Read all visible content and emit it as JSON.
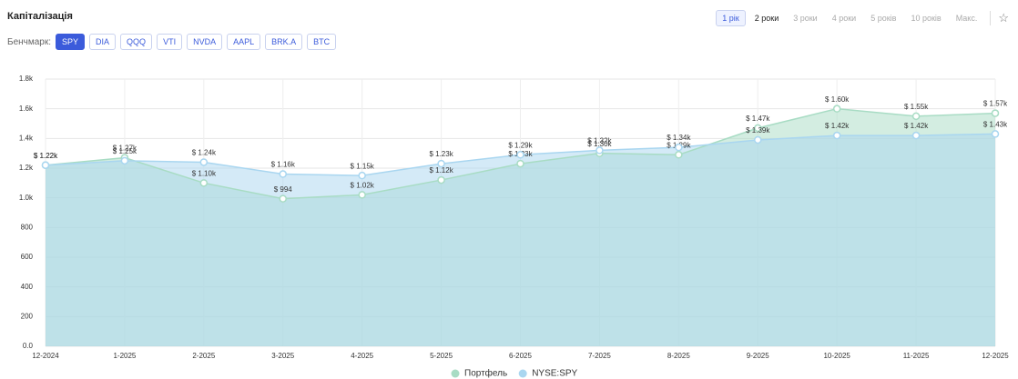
{
  "header": {
    "title": "Капіталізація",
    "benchmark_label": "Бенчмарк:",
    "benchmarks": [
      "SPY",
      "DIA",
      "QQQ",
      "VTI",
      "NVDA",
      "AAPL",
      "BRK.A",
      "BTC"
    ],
    "active_benchmark": 0,
    "periods": [
      "1 рік",
      "2 роки",
      "3 роки",
      "4 роки",
      "5 років",
      "10 років",
      "Макс."
    ],
    "active_period": 0
  },
  "chart_data": {
    "type": "area",
    "categories": [
      "12-2024",
      "1-2025",
      "2-2025",
      "3-2025",
      "4-2025",
      "5-2025",
      "6-2025",
      "7-2025",
      "8-2025",
      "9-2025",
      "10-2025",
      "11-2025",
      "12-2025"
    ],
    "series": [
      {
        "name": "Портфель",
        "color": "#a8dcc4",
        "values": [
          1220,
          1270,
          1100,
          994,
          1020,
          1120,
          1230,
          1300,
          1290,
          1470,
          1600,
          1550,
          1570
        ],
        "value_labels": [
          "$ 1.22k",
          "$ 1.27k",
          "$ 1.10k",
          "$ 994",
          "$ 1.02k",
          "$ 1.12k",
          "$ 1.23k",
          "$ 1.30k",
          "$ 1.29k",
          "$ 1.47k",
          "$ 1.60k",
          "$ 1.55k",
          "$ 1.57k"
        ]
      },
      {
        "name": "NYSE:SPY",
        "color": "#a9d6f0",
        "values": [
          1220,
          1250,
          1240,
          1160,
          1150,
          1230,
          1290,
          1320,
          1340,
          1390,
          1420,
          1420,
          1430
        ],
        "value_labels": [
          "$ 1.22k",
          "$ 1.25k",
          "$ 1.24k",
          "$ 1.16k",
          "$ 1.15k",
          "$ 1.23k",
          "$ 1.29k",
          "$ 1.32k",
          "$ 1.34k",
          "$ 1.39k",
          "$ 1.42k",
          "$ 1.42k",
          "$ 1.43k"
        ]
      }
    ],
    "ylim": [
      0,
      1800
    ],
    "yticks": [
      {
        "value": 0,
        "label": "0.0"
      },
      200,
      400,
      600,
      800,
      {
        "value": 1000,
        "label": "1.0k"
      },
      {
        "value": 1200,
        "label": "1.2k"
      },
      {
        "value": 1400,
        "label": "1.4k"
      },
      {
        "value": 1600,
        "label": "1.6k"
      },
      {
        "value": 1800,
        "label": "1.8k"
      }
    ],
    "grid": true
  }
}
